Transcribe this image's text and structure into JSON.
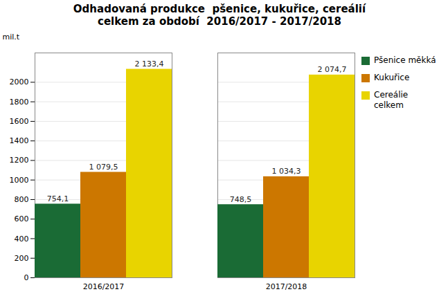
{
  "chart_data": {
    "type": "bar",
    "title": "Odhadovaná produkce  pšenice, kukuřice, cereálií\ncelkem za období  2016/2017 - 2017/2018",
    "ylabel": "mil.t",
    "categories": [
      "2016/2017",
      "2017/2018"
    ],
    "series": [
      {
        "name": "Pšenice měkká",
        "color": "#1a6b35",
        "values": [
          754.1,
          748.5
        ],
        "value_labels": [
          "754,1",
          "748,5"
        ]
      },
      {
        "name": "Kukuřice",
        "color": "#cc7700",
        "values": [
          1079.5,
          1034.3
        ],
        "value_labels": [
          "1 079,5",
          "1 034,3"
        ]
      },
      {
        "name": "Cereálie\ncelkem",
        "color": "#e8d400",
        "values": [
          2133.4,
          2074.7
        ],
        "value_labels": [
          "2 133,4",
          "2 074,7"
        ]
      }
    ],
    "ylim": [
      0,
      2300
    ],
    "yticks": [
      0,
      200,
      400,
      600,
      800,
      1000,
      1200,
      1400,
      1600,
      1800,
      2000
    ],
    "grid": true,
    "legend": "upper right",
    "data_labels": true
  }
}
